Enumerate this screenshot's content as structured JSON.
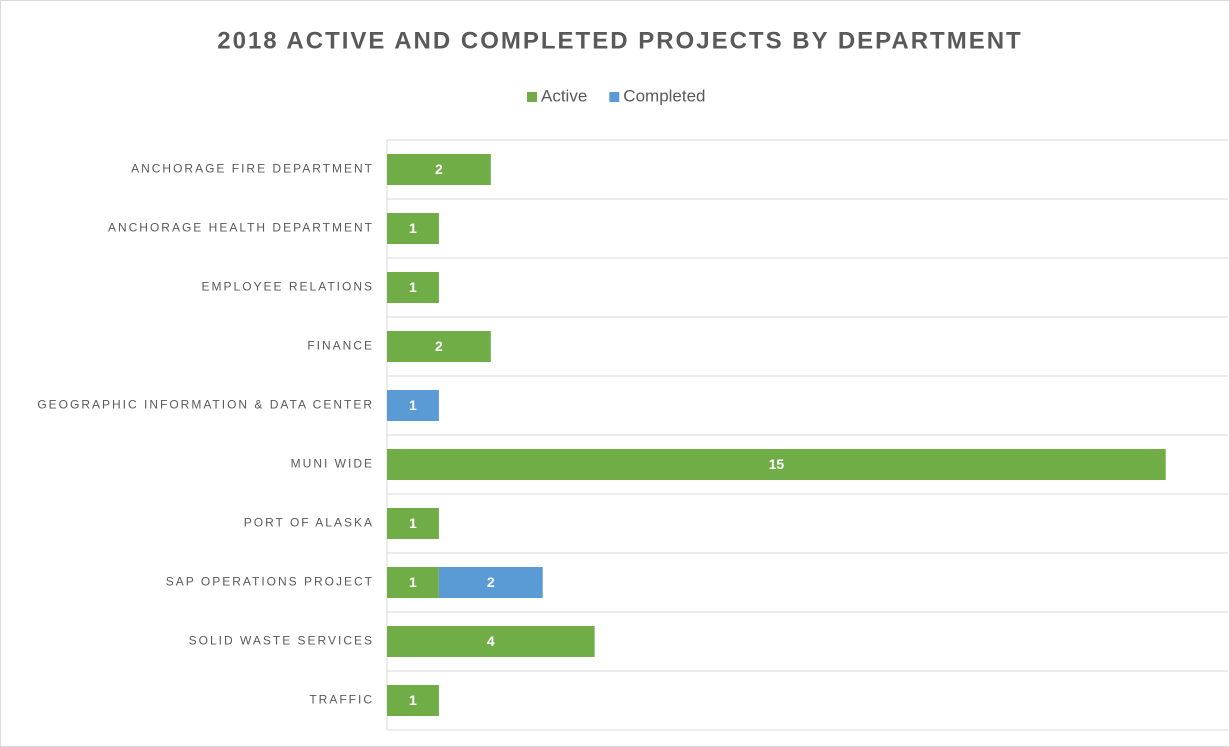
{
  "chart_data": {
    "type": "stacked-barh",
    "title": "2018 ACTIVE AND COMPLETED PROJECTS BY DEPARTMENT",
    "categories": [
      "ANCHORAGE FIRE DEPARTMENT",
      "ANCHORAGE HEALTH DEPARTMENT",
      "EMPLOYEE RELATIONS",
      "FINANCE",
      "GEOGRAPHIC INFORMATION & DATA CENTER",
      "MUNI WIDE",
      "PORT OF ALASKA",
      "SAP OPERATIONS PROJECT",
      "SOLID WASTE SERVICES",
      "TRAFFIC"
    ],
    "series": [
      {
        "name": "Active",
        "color": "#70ad47",
        "values": [
          2,
          1,
          1,
          2,
          null,
          15,
          1,
          1,
          4,
          1
        ]
      },
      {
        "name": "Completed",
        "color": "#5b9bd5",
        "values": [
          null,
          null,
          null,
          null,
          1,
          null,
          null,
          2,
          null,
          null
        ]
      }
    ],
    "xlim": [
      0,
      16.2
    ],
    "legend": "top",
    "grid": true
  }
}
